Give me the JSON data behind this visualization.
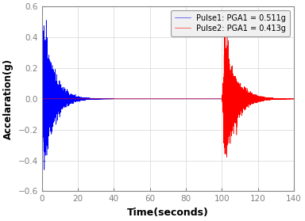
{
  "title": "",
  "xlabel": "Time(seconds)",
  "ylabel": "Accelaration(g)",
  "xlim": [
    0,
    140
  ],
  "ylim": [
    -0.6,
    0.6
  ],
  "xticks": [
    0,
    20,
    40,
    60,
    80,
    100,
    120,
    140
  ],
  "yticks": [
    -0.6,
    -0.4,
    -0.2,
    0,
    0.2,
    0.4,
    0.6
  ],
  "pulse1_label": "Pulse1: PGA1 = 0.511g",
  "pulse2_label": "Pulse2: PGA1 = 0.413g",
  "pulse1_color": "#0000ff",
  "pulse2_color": "#ff0000",
  "pulse1_pga": 0.511,
  "pulse2_pga": 0.413,
  "background_color": "#ffffff",
  "grid_color": "#d3d3d3",
  "legend_facecolor": "#f0f0f0",
  "tick_color": "#808080",
  "figsize": [
    3.84,
    2.79
  ],
  "dpi": 100
}
